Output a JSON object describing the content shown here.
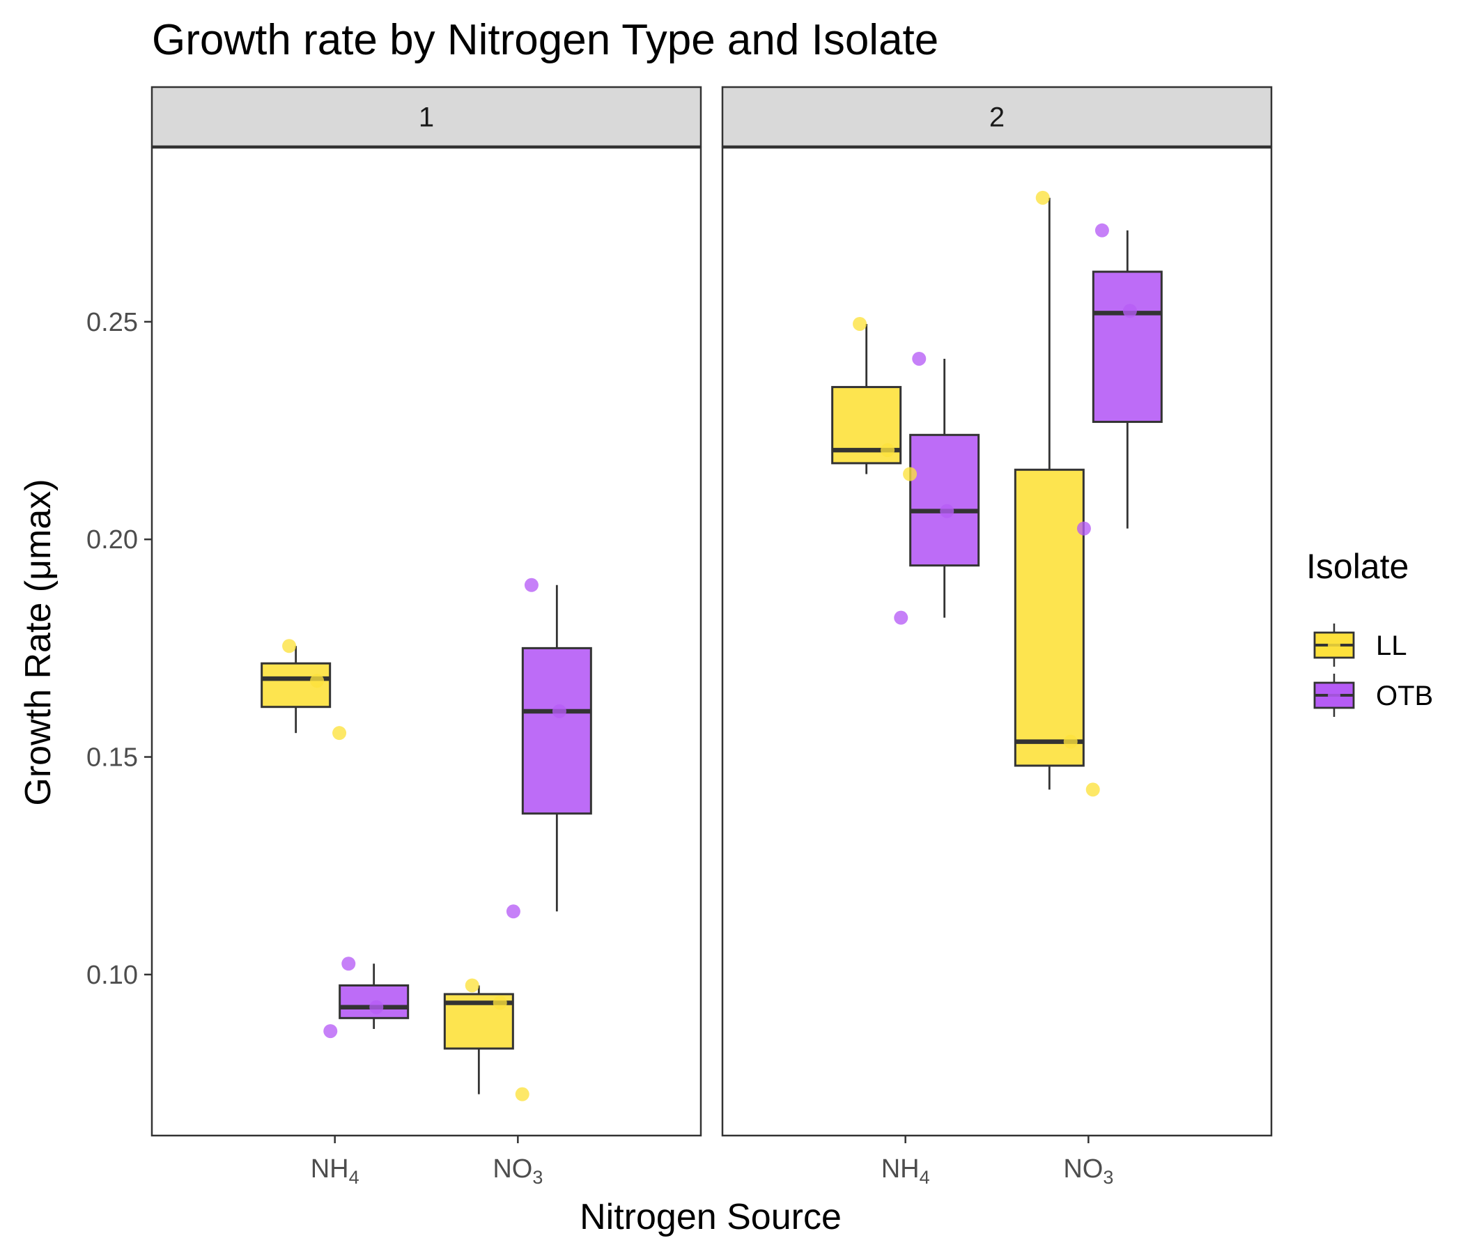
{
  "chart_data": {
    "type": "box",
    "title": "Growth rate by Nitrogen Type and Isolate",
    "xlabel": "Nitrogen Source",
    "ylabel": "Growth Rate (μmax)",
    "ylim": [
      0.063,
      0.29
    ],
    "yticks": [
      "0.10",
      "0.15",
      "0.20",
      "0.25"
    ],
    "facets": [
      "1",
      "2"
    ],
    "categories": [
      {
        "base": "NH",
        "sub": "4"
      },
      {
        "base": "NO",
        "sub": "3"
      }
    ],
    "legend": {
      "title": "Isolate",
      "placement": "right",
      "items": [
        {
          "name": "LL",
          "color": "#FDE13C"
        },
        {
          "name": "OTB",
          "color": "#B65CF6"
        }
      ]
    },
    "boxes": [
      {
        "facet": "1",
        "category": "NH4",
        "isolate": "LL",
        "lower": 0.1555,
        "q1": 0.1615,
        "median": 0.168,
        "q3": 0.1715,
        "upper": 0.1755
      },
      {
        "facet": "1",
        "category": "NH4",
        "isolate": "OTB",
        "lower": 0.0875,
        "q1": 0.09,
        "median": 0.0925,
        "q3": 0.0975,
        "upper": 0.1025
      },
      {
        "facet": "1",
        "category": "NO3",
        "isolate": "LL",
        "lower": 0.0725,
        "q1": 0.083,
        "median": 0.0935,
        "q3": 0.0955,
        "upper": 0.0975
      },
      {
        "facet": "1",
        "category": "NO3",
        "isolate": "OTB",
        "lower": 0.1145,
        "q1": 0.137,
        "median": 0.1605,
        "q3": 0.175,
        "upper": 0.1895
      },
      {
        "facet": "2",
        "category": "NH4",
        "isolate": "LL",
        "lower": 0.215,
        "q1": 0.2175,
        "median": 0.2205,
        "q3": 0.235,
        "upper": 0.2495
      },
      {
        "facet": "2",
        "category": "NH4",
        "isolate": "OTB",
        "lower": 0.182,
        "q1": 0.194,
        "median": 0.2065,
        "q3": 0.224,
        "upper": 0.2415
      },
      {
        "facet": "2",
        "category": "NO3",
        "isolate": "LL",
        "lower": 0.1425,
        "q1": 0.148,
        "median": 0.1535,
        "q3": 0.216,
        "upper": 0.2785
      },
      {
        "facet": "2",
        "category": "NO3",
        "isolate": "OTB",
        "lower": 0.2025,
        "q1": 0.227,
        "median": 0.252,
        "q3": 0.2615,
        "upper": 0.271
      }
    ],
    "points": [
      {
        "facet": "1",
        "category": "NH4",
        "isolate": "LL",
        "y": 0.1755
      },
      {
        "facet": "1",
        "category": "NH4",
        "isolate": "LL",
        "y": 0.1675
      },
      {
        "facet": "1",
        "category": "NH4",
        "isolate": "LL",
        "y": 0.1555
      },
      {
        "facet": "1",
        "category": "NH4",
        "isolate": "OTB",
        "y": 0.1025
      },
      {
        "facet": "1",
        "category": "NH4",
        "isolate": "OTB",
        "y": 0.0925
      },
      {
        "facet": "1",
        "category": "NH4",
        "isolate": "OTB",
        "y": 0.087
      },
      {
        "facet": "1",
        "category": "NO3",
        "isolate": "LL",
        "y": 0.0975
      },
      {
        "facet": "1",
        "category": "NO3",
        "isolate": "LL",
        "y": 0.0935
      },
      {
        "facet": "1",
        "category": "NO3",
        "isolate": "LL",
        "y": 0.0725
      },
      {
        "facet": "1",
        "category": "NO3",
        "isolate": "OTB",
        "y": 0.1895
      },
      {
        "facet": "1",
        "category": "NO3",
        "isolate": "OTB",
        "y": 0.1605
      },
      {
        "facet": "1",
        "category": "NO3",
        "isolate": "OTB",
        "y": 0.1145
      },
      {
        "facet": "2",
        "category": "NH4",
        "isolate": "LL",
        "y": 0.2495
      },
      {
        "facet": "2",
        "category": "NH4",
        "isolate": "LL",
        "y": 0.2205
      },
      {
        "facet": "2",
        "category": "NH4",
        "isolate": "LL",
        "y": 0.215
      },
      {
        "facet": "2",
        "category": "NH4",
        "isolate": "OTB",
        "y": 0.2415
      },
      {
        "facet": "2",
        "category": "NH4",
        "isolate": "OTB",
        "y": 0.2065
      },
      {
        "facet": "2",
        "category": "NH4",
        "isolate": "OTB",
        "y": 0.182
      },
      {
        "facet": "2",
        "category": "NO3",
        "isolate": "LL",
        "y": 0.2785
      },
      {
        "facet": "2",
        "category": "NO3",
        "isolate": "LL",
        "y": 0.1535
      },
      {
        "facet": "2",
        "category": "NO3",
        "isolate": "LL",
        "y": 0.1425
      },
      {
        "facet": "2",
        "category": "NO3",
        "isolate": "OTB",
        "y": 0.271
      },
      {
        "facet": "2",
        "category": "NO3",
        "isolate": "OTB",
        "y": 0.2525
      },
      {
        "facet": "2",
        "category": "NO3",
        "isolate": "OTB",
        "y": 0.2025
      }
    ]
  }
}
